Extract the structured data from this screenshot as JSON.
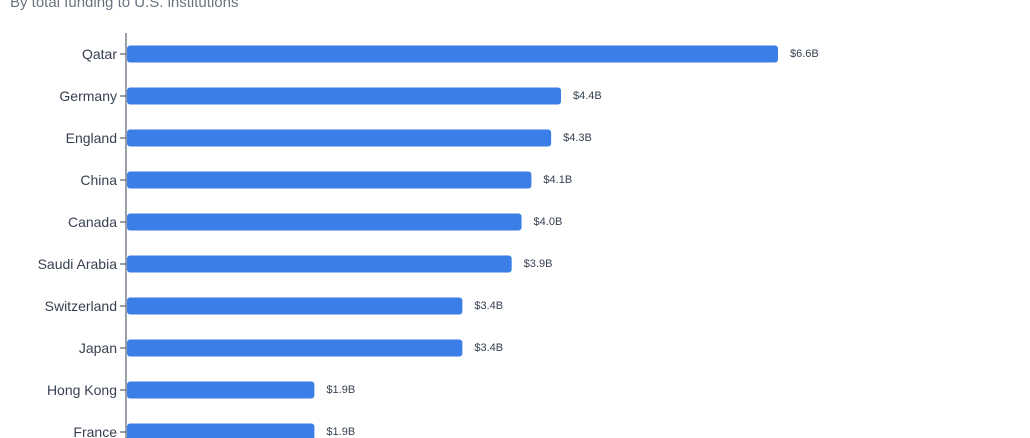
{
  "subtitle": "By total funding to U.S. institutions",
  "colors": {
    "bar": "#3b7ee8",
    "axis": "#374151",
    "text": "#374151"
  },
  "chart_data": {
    "type": "bar",
    "orientation": "horizontal",
    "title": "",
    "subtitle": "By total funding to U.S. institutions",
    "xlabel": "",
    "ylabel": "",
    "categories": [
      "Qatar",
      "Germany",
      "England",
      "China",
      "Canada",
      "Saudi Arabia",
      "Switzerland",
      "Japan",
      "Hong Kong",
      "France"
    ],
    "values": [
      6.6,
      4.4,
      4.3,
      4.1,
      4.0,
      3.9,
      3.4,
      3.4,
      1.9,
      1.9
    ],
    "value_labels": [
      "$6.6B",
      "$4.4B",
      "$4.3B",
      "$4.1B",
      "$4.0B",
      "$3.9B",
      "$3.4B",
      "$3.4B",
      "$1.9B",
      "$1.9B"
    ],
    "xlim": [
      0,
      6.6
    ],
    "grid": false,
    "legend": "none"
  }
}
